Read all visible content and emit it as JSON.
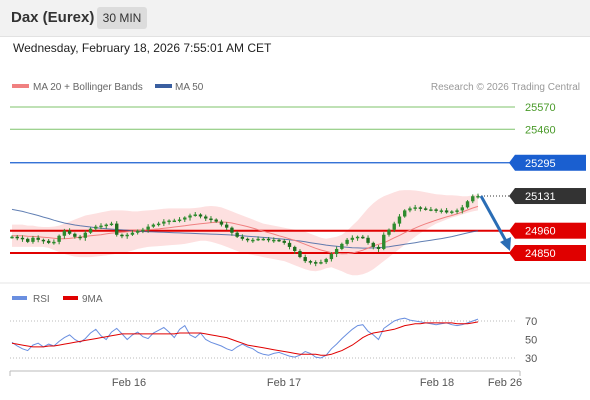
{
  "header": {
    "title": "Dax (Eurex)",
    "timeframe": "30 MIN"
  },
  "datetime": "Wednesday, February 18, 2026 7:55:01 AM CET",
  "legend": {
    "ma20": "MA 20 + Bollinger Bands",
    "ma50": "MA 50",
    "copyright": "Research © 2026 Trading Central"
  },
  "rsi_legend": {
    "rsi": "RSI",
    "ma9": "9MA"
  },
  "colors": {
    "ma20": "#f08080",
    "ma50": "#3a5fa0",
    "candle": "#2e8b2e",
    "bollinger_fill": "#fde0e0",
    "target": "#7fc36b",
    "pivot": "#1a5fd0",
    "support": "#e00000",
    "last_price": "#333333",
    "forecast_arrow": "#2a6db5",
    "rsi": "#6a8fe0",
    "rsi_ma": "#e00000"
  },
  "chart_data": [
    {
      "type": "line",
      "name": "price",
      "x_ticks": [
        "Feb 16",
        "Feb 17",
        "Feb 18",
        "Feb 26"
      ],
      "ylim": [
        24740,
        25640
      ],
      "levels": [
        {
          "label": "25570",
          "value": 25570,
          "kind": "target"
        },
        {
          "label": "25460",
          "value": 25460,
          "kind": "target"
        },
        {
          "label": "25295",
          "value": 25295,
          "kind": "pivot"
        },
        {
          "label": "25131",
          "value": 25131,
          "kind": "last"
        },
        {
          "label": "24960",
          "value": 24960,
          "kind": "support"
        },
        {
          "label": "24850",
          "value": 24850,
          "kind": "support"
        }
      ],
      "close": [
        24930,
        24925,
        24920,
        24905,
        24925,
        24915,
        24910,
        24900,
        24905,
        24935,
        24960,
        24945,
        24930,
        24925,
        24950,
        24970,
        24980,
        24985,
        24990,
        24995,
        24940,
        24935,
        24940,
        24950,
        24960,
        24965,
        24980,
        24990,
        24995,
        25005,
        25010,
        25010,
        25015,
        25025,
        25035,
        25040,
        25030,
        25020,
        25015,
        25005,
        24990,
        24975,
        24950,
        24930,
        24920,
        24915,
        24915,
        24920,
        24920,
        24915,
        24915,
        24910,
        24900,
        24880,
        24860,
        24830,
        24810,
        24805,
        24800,
        24805,
        24820,
        24845,
        24870,
        24895,
        24915,
        24925,
        24930,
        24925,
        24900,
        24880,
        24870,
        24940,
        24965,
        24995,
        25030,
        25060,
        25070,
        25075,
        25070,
        25065,
        25065,
        25060,
        25060,
        25050,
        25055,
        25060,
        25075,
        25105,
        25130,
        25131
      ],
      "ma20": [
        24935,
        24935,
        24935,
        24933,
        24932,
        24930,
        24928,
        24926,
        24923,
        24920,
        24920,
        24922,
        24925,
        24928,
        24932,
        24935,
        24938,
        24940,
        24944,
        24948,
        24950,
        24952,
        24955,
        24958,
        24961,
        24963,
        24965,
        24967,
        24969,
        24972,
        24975,
        24978,
        24981,
        24984,
        24988,
        24991,
        24994,
        24997,
        25000,
        25002,
        25003,
        25002,
        24998,
        24992,
        24986,
        24980,
        24973,
        24965,
        24958,
        24950,
        24943,
        24935,
        24928,
        24920,
        24912,
        24903,
        24893,
        24883,
        24873,
        24865,
        24858,
        24852,
        24848,
        24846,
        24847,
        24850,
        24856,
        24864,
        24874,
        24885,
        24893,
        24900,
        24912,
        24925,
        24937,
        24950,
        24962,
        24973,
        24984,
        24994,
        25003,
        25012,
        25020,
        25028,
        25035,
        25043,
        25052,
        25062,
        25072,
        25080
      ],
      "bb_upper": [
        24990,
        24990,
        24990,
        24985,
        24985,
        24980,
        24978,
        24978,
        24980,
        24985,
        24995,
        25005,
        25015,
        25025,
        25035,
        25040,
        25045,
        25050,
        25055,
        25060,
        25060,
        25060,
        25058,
        25055,
        25055,
        25058,
        25060,
        25062,
        25065,
        25068,
        25070,
        25070,
        25070,
        25070,
        25070,
        25072,
        25075,
        25080,
        25082,
        25080,
        25075,
        25065,
        25055,
        25045,
        25035,
        25025,
        25015,
        25005,
        24995,
        24990,
        24985,
        24980,
        24975,
        24970,
        24965,
        24960,
        24955,
        24945,
        24935,
        24925,
        24920,
        24925,
        24930,
        24940,
        24960,
        24985,
        25010,
        25040,
        25070,
        25095,
        25115,
        25130,
        25140,
        25150,
        25158,
        25160,
        25160,
        25158,
        25155,
        25150,
        25145,
        25140,
        25138,
        25135,
        25135,
        25133,
        25130,
        25130,
        25135,
        25140
      ],
      "bb_lower": [
        24880,
        24880,
        24880,
        24880,
        24880,
        24880,
        24880,
        24875,
        24865,
        24855,
        24845,
        24838,
        24832,
        24830,
        24830,
        24830,
        24832,
        24835,
        24838,
        24842,
        24846,
        24850,
        24855,
        24862,
        24870,
        24875,
        24880,
        24882,
        24884,
        24886,
        24888,
        24890,
        24892,
        24895,
        24900,
        24905,
        24910,
        24910,
        24905,
        24898,
        24890,
        24880,
        24870,
        24860,
        24850,
        24845,
        24840,
        24835,
        24830,
        24825,
        24820,
        24815,
        24810,
        24800,
        24790,
        24780,
        24770,
        24762,
        24760,
        24765,
        24775,
        24780,
        24770,
        24760,
        24748,
        24740,
        24740,
        24745,
        24755,
        24770,
        24790,
        24810,
        24830,
        24850,
        24870,
        24890,
        24910,
        24930,
        24948,
        24965,
        24980,
        24995,
        25005,
        25015,
        25025,
        25032,
        25040,
        25048,
        25055,
        25060
      ],
      "ma50": [
        25065,
        25060,
        25055,
        25048,
        25042,
        25035,
        25027,
        25020,
        25012,
        25005,
        24998,
        24993,
        24988,
        24984,
        24981,
        24978,
        24975,
        24972,
        24970,
        24968,
        24966,
        24964,
        24962,
        24960,
        24958,
        24956,
        24955,
        24954,
        24953,
        24952,
        24951,
        24950,
        24949,
        24948,
        24947,
        24946,
        24945,
        24944,
        24943,
        24942,
        24941,
        24940,
        24939,
        24937,
        24935,
        24933,
        24931,
        24929,
        24927,
        24925,
        24922,
        24920,
        24918,
        24915,
        24912,
        24909,
        24905,
        24901,
        24897,
        24893,
        24889,
        24886,
        24883,
        24880,
        24878,
        24876,
        24875,
        24874,
        24874,
        24875,
        24876,
        24878,
        24881,
        24885,
        24889,
        24893,
        24897,
        24901,
        24905,
        24909,
        24913,
        24917,
        24921,
        24926,
        24931,
        24937,
        24943,
        24949,
        24955,
        24960
      ],
      "forecast": [
        25131,
        24860
      ]
    },
    {
      "type": "line",
      "name": "rsi",
      "ylim": [
        20,
        80
      ],
      "y_ticks": [
        "70",
        "50",
        "30"
      ],
      "rsi": [
        47,
        43,
        40,
        38,
        44,
        46,
        42,
        45,
        43,
        48,
        52,
        55,
        50,
        47,
        51,
        57,
        61,
        54,
        50,
        58,
        62,
        56,
        50,
        55,
        58,
        53,
        51,
        57,
        60,
        63,
        58,
        52,
        61,
        65,
        55,
        52,
        57,
        50,
        47,
        45,
        43,
        40,
        38,
        42,
        45,
        42,
        40,
        36,
        34,
        33,
        35,
        36,
        34,
        32,
        31,
        33,
        37,
        35,
        31,
        30,
        33,
        40,
        45,
        51,
        56,
        61,
        65,
        66,
        59,
        55,
        50,
        62,
        66,
        70,
        72,
        73,
        71,
        70,
        69,
        68,
        67,
        66,
        67,
        68,
        66,
        65,
        66,
        68,
        70,
        72
      ],
      "ma9": [
        46,
        45,
        44,
        43,
        42,
        42,
        42,
        43,
        43,
        44,
        45,
        46,
        47,
        48,
        49,
        50,
        51,
        52,
        53,
        54,
        55,
        56,
        56,
        56,
        56,
        56,
        56,
        56,
        56,
        56,
        56,
        56,
        57,
        57,
        57,
        57,
        57,
        56,
        55,
        54,
        53,
        52,
        50,
        48,
        46,
        44,
        43,
        42,
        41,
        40,
        39,
        38,
        37,
        36,
        35,
        34,
        34,
        34,
        34,
        33,
        33,
        34,
        36,
        38,
        41,
        44,
        48,
        52,
        55,
        57,
        58,
        59,
        60,
        61,
        63,
        65,
        66,
        67,
        67,
        68,
        68,
        68,
        68,
        68,
        68,
        67,
        67,
        67,
        68,
        69
      ]
    }
  ]
}
